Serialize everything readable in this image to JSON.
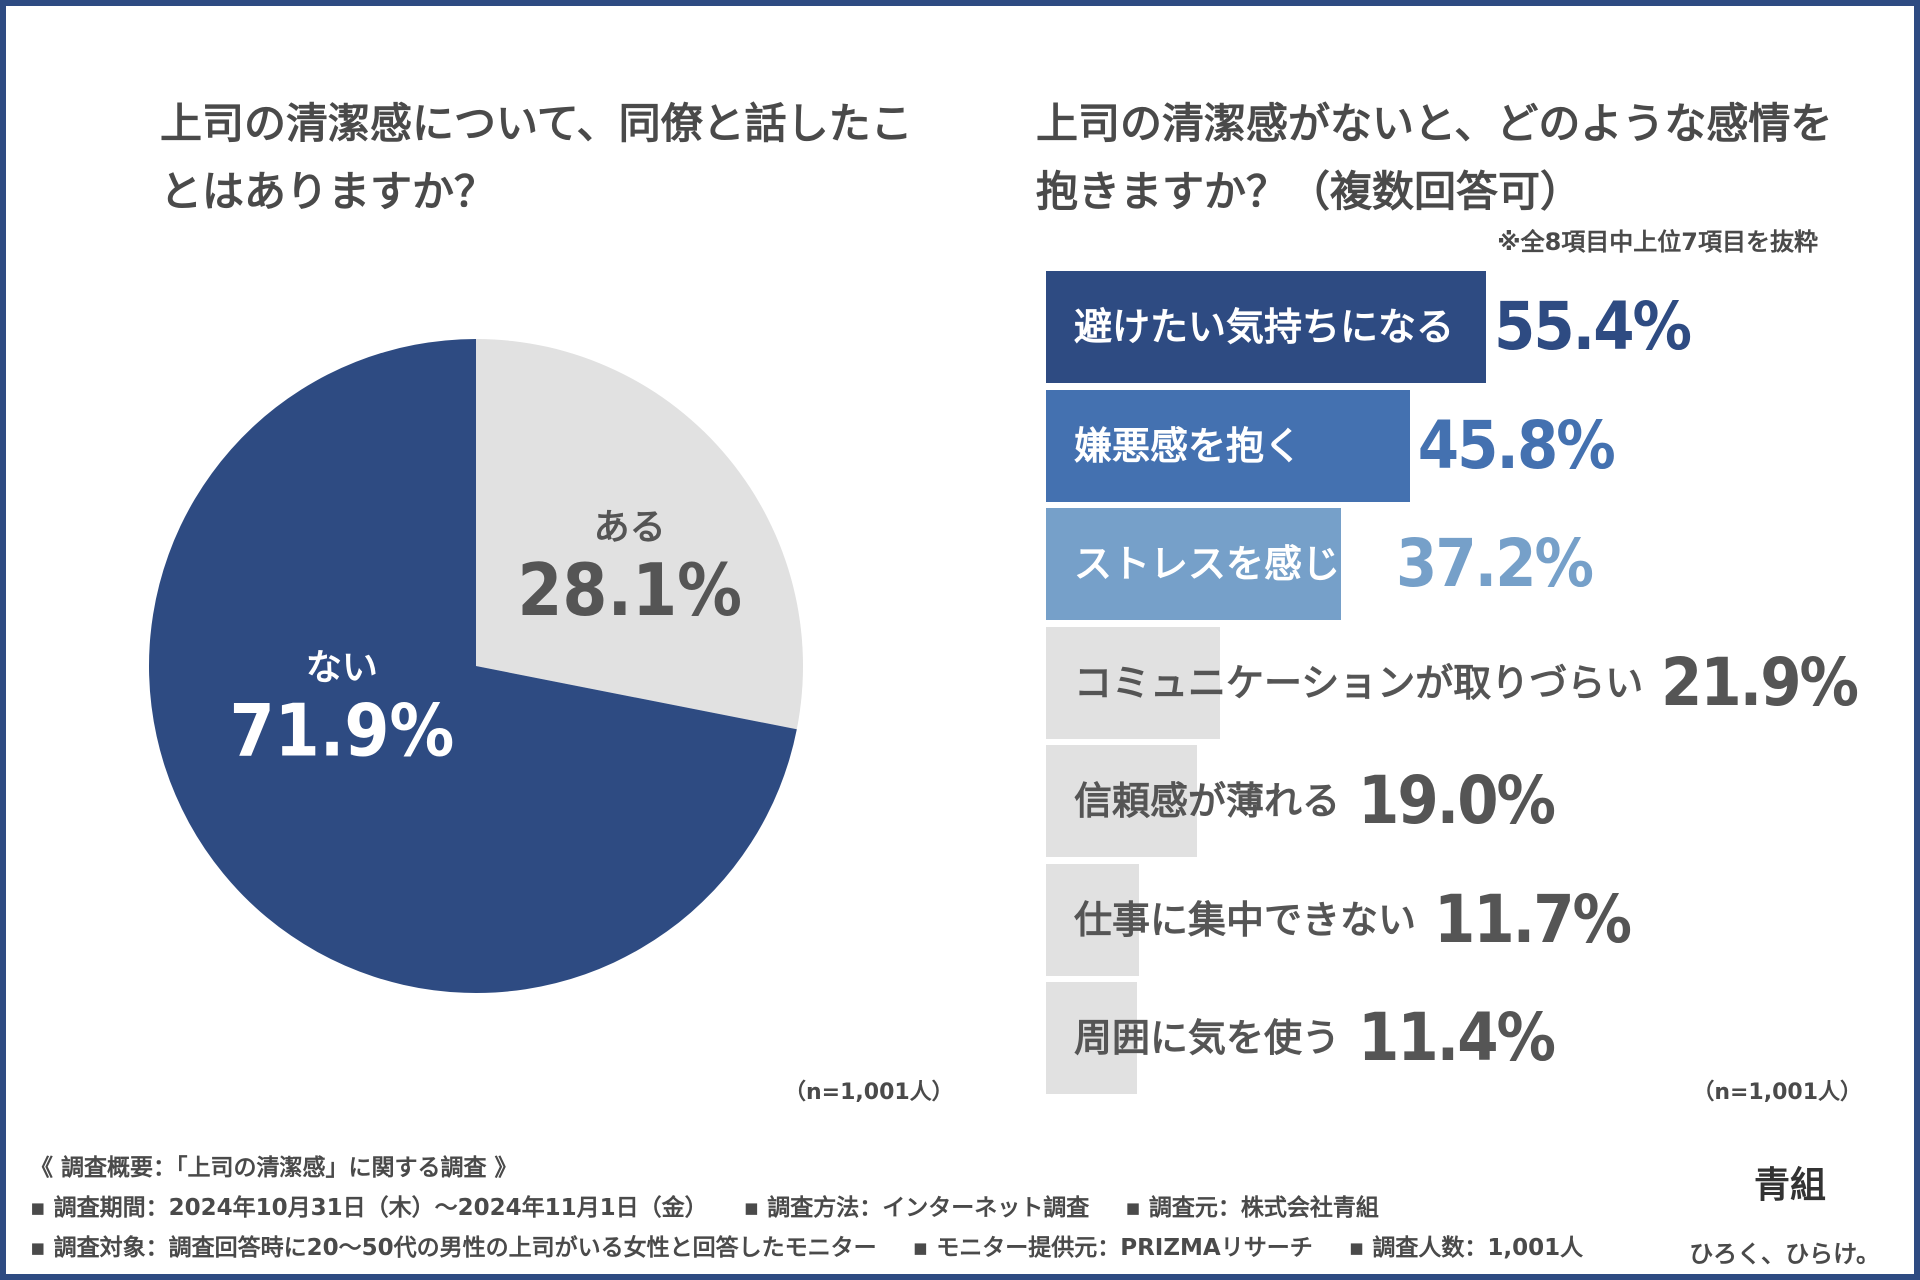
{
  "left_title": "上司の清潔感について、同僚と話したことはありますか？",
  "right_title": "上司の清潔感がないと、どのような感情を抱きますか？（複数回答可）",
  "excerpt_note": "※全8項目中上位7項目を抜粋",
  "n_note": "（n=1,001人）",
  "colors": {
    "dark_blue": "#2e4b82",
    "mid_blue": "#4471b0",
    "light_blue": "#76a0c9",
    "gray_fill": "#e1e1e1",
    "gray_text": "#555555",
    "white": "#ffffff"
  },
  "chart_data": [
    {
      "type": "pie",
      "title": "上司の清潔感について、同僚と話したことはありますか？",
      "slices": [
        {
          "label": "ある",
          "value": 28.1,
          "value_label": "28.1%",
          "color": "#e1e1e1"
        },
        {
          "label": "ない",
          "value": 71.9,
          "value_label": "71.9%",
          "color": "#2e4b82"
        }
      ],
      "note": "（n=1,001人）"
    },
    {
      "type": "bar",
      "orientation": "horizontal",
      "title": "上司の清潔感がないと、どのような感情を抱きますか？（複数回答可）",
      "unit": "%",
      "xlim": [
        0,
        70
      ],
      "categories": [
        "避けたい気持ちになる",
        "嫌悪感を抱く",
        "ストレスを感じる",
        "コミュニケーションが取りづらい",
        "信頼感が薄れる",
        "仕事に集中できない",
        "周囲に気を使う"
      ],
      "values": [
        55.4,
        45.8,
        37.2,
        21.9,
        19.0,
        11.7,
        11.4
      ],
      "value_labels": [
        "55.4%",
        "45.8%",
        "37.2%",
        "21.9%",
        "19.0%",
        "11.7%",
        "11.4%"
      ],
      "bar_colors": [
        "#2e4b82",
        "#4471b0",
        "#76a0c9",
        "#e1e1e1",
        "#e1e1e1",
        "#e1e1e1",
        "#e1e1e1"
      ],
      "label_colors": [
        "#ffffff",
        "#ffffff",
        "#ffffff",
        "#555555",
        "#555555",
        "#555555",
        "#555555"
      ],
      "value_colors": [
        "#2e4b82",
        "#4471b0",
        "#76a0c9",
        "#555555",
        "#555555",
        "#555555",
        "#555555"
      ],
      "note": "（n=1,001人）"
    }
  ],
  "footer": {
    "heading": "《 調査概要：「上司の清潔感」に関する調査 》",
    "period": "▪ 調査期間：2024年10月31日（木）〜2024年11月1日（金）",
    "method": "▪ 調査方法：インターネット調査",
    "source": "▪ 調査元：株式会社青組",
    "target": "▪ 調査対象：調査回答時に20〜50代の男性の上司がいる女性と回答したモニター",
    "provider": "▪ モニター提供元：PRIZMAリサーチ",
    "count": "▪ 調査人数：1,001人"
  },
  "brand": "青組",
  "tagline": "ひろく、ひらけ。"
}
